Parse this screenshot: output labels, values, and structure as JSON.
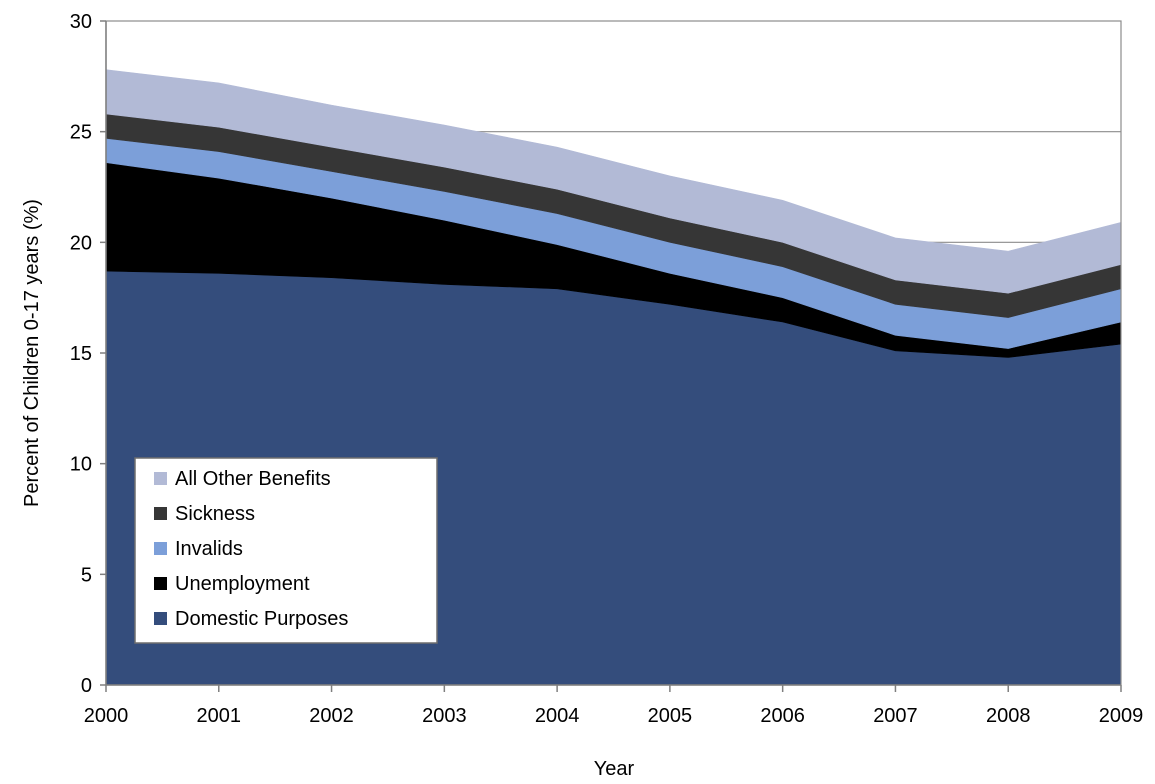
{
  "chart_data": {
    "type": "area",
    "stacked": true,
    "xlabel": "Year",
    "ylabel": "Percent of Children 0-17 years (%)",
    "x": [
      2000,
      2001,
      2002,
      2003,
      2004,
      2005,
      2006,
      2007,
      2008,
      2009
    ],
    "ylim": [
      0,
      30
    ],
    "yticks": [
      0,
      5,
      10,
      15,
      20,
      25,
      30
    ],
    "grid": "horizontal",
    "legend_position": "lower-left",
    "series": [
      {
        "name": "Domestic Purposes",
        "color": "#344D7C",
        "values": [
          18.7,
          18.6,
          18.4,
          18.1,
          17.9,
          17.2,
          16.4,
          15.1,
          14.8,
          15.4
        ]
      },
      {
        "name": "Unemployment",
        "color": "#000000",
        "values": [
          4.9,
          4.3,
          3.6,
          2.9,
          2.0,
          1.4,
          1.1,
          0.7,
          0.4,
          1.0
        ]
      },
      {
        "name": "Invalids",
        "color": "#7C9FD9",
        "values": [
          1.1,
          1.2,
          1.2,
          1.3,
          1.4,
          1.4,
          1.4,
          1.4,
          1.4,
          1.5
        ]
      },
      {
        "name": "Sickness",
        "color": "#363636",
        "values": [
          1.1,
          1.1,
          1.1,
          1.1,
          1.1,
          1.1,
          1.1,
          1.1,
          1.1,
          1.1
        ]
      },
      {
        "name": "All Other Benefits",
        "color": "#B2BAD6",
        "values": [
          2.0,
          2.0,
          1.9,
          1.9,
          1.9,
          1.9,
          1.9,
          1.9,
          1.9,
          1.9
        ]
      }
    ]
  }
}
